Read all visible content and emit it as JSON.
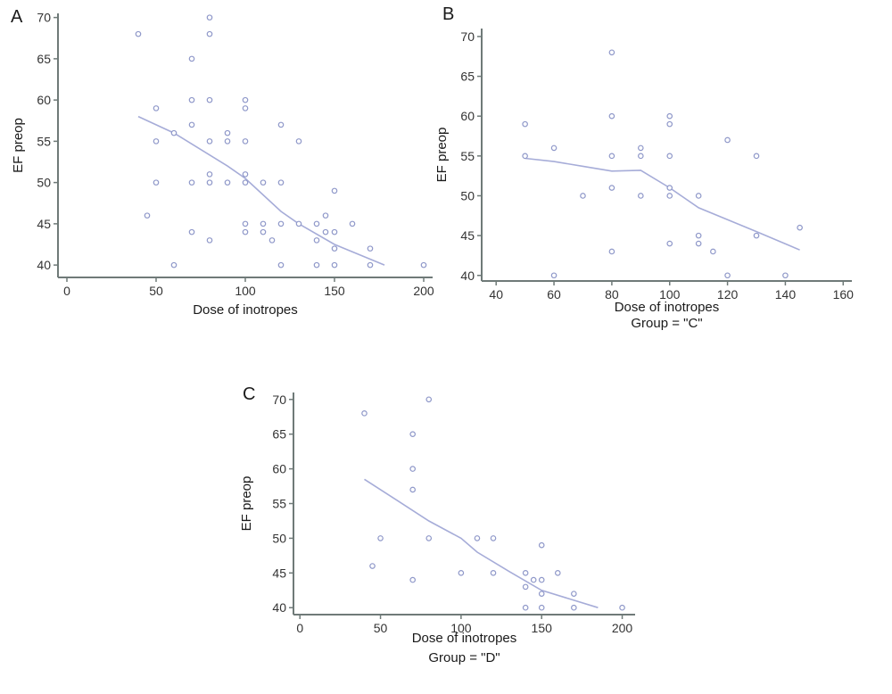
{
  "chart_data": [
    {
      "type": "scatter",
      "panel_label": "A",
      "xlabel": "Dose of inotropes",
      "ylabel": "EF preop",
      "group_label": "",
      "xlim": [
        -5,
        205
      ],
      "ylim": [
        38.5,
        70.5
      ],
      "xticks": [
        0,
        50,
        100,
        150,
        200
      ],
      "yticks": [
        40,
        45,
        50,
        55,
        60,
        65,
        70
      ],
      "colors": {
        "marker": "#8f98c9",
        "line": "#a6acd8",
        "axis": "#6f7a78"
      },
      "points": [
        {
          "x": 40,
          "y": 68
        },
        {
          "x": 80,
          "y": 70
        },
        {
          "x": 80,
          "y": 68
        },
        {
          "x": 70,
          "y": 65
        },
        {
          "x": 50,
          "y": 59
        },
        {
          "x": 70,
          "y": 60
        },
        {
          "x": 80,
          "y": 60
        },
        {
          "x": 100,
          "y": 60
        },
        {
          "x": 100,
          "y": 59
        },
        {
          "x": 70,
          "y": 57
        },
        {
          "x": 60,
          "y": 56
        },
        {
          "x": 90,
          "y": 56
        },
        {
          "x": 50,
          "y": 55
        },
        {
          "x": 80,
          "y": 55
        },
        {
          "x": 90,
          "y": 55
        },
        {
          "x": 100,
          "y": 55
        },
        {
          "x": 120,
          "y": 57
        },
        {
          "x": 130,
          "y": 55
        },
        {
          "x": 80,
          "y": 51
        },
        {
          "x": 100,
          "y": 51
        },
        {
          "x": 50,
          "y": 50
        },
        {
          "x": 70,
          "y": 50
        },
        {
          "x": 80,
          "y": 50
        },
        {
          "x": 90,
          "y": 50
        },
        {
          "x": 100,
          "y": 50
        },
        {
          "x": 110,
          "y": 50
        },
        {
          "x": 120,
          "y": 50
        },
        {
          "x": 150,
          "y": 49
        },
        {
          "x": 45,
          "y": 46
        },
        {
          "x": 145,
          "y": 46
        },
        {
          "x": 100,
          "y": 45
        },
        {
          "x": 110,
          "y": 45
        },
        {
          "x": 120,
          "y": 45
        },
        {
          "x": 130,
          "y": 45
        },
        {
          "x": 140,
          "y": 45
        },
        {
          "x": 160,
          "y": 45
        },
        {
          "x": 70,
          "y": 44
        },
        {
          "x": 100,
          "y": 44
        },
        {
          "x": 110,
          "y": 44
        },
        {
          "x": 145,
          "y": 44
        },
        {
          "x": 150,
          "y": 44
        },
        {
          "x": 80,
          "y": 43
        },
        {
          "x": 115,
          "y": 43
        },
        {
          "x": 140,
          "y": 43
        },
        {
          "x": 150,
          "y": 42
        },
        {
          "x": 170,
          "y": 42
        },
        {
          "x": 60,
          "y": 40
        },
        {
          "x": 120,
          "y": 40
        },
        {
          "x": 140,
          "y": 40
        },
        {
          "x": 150,
          "y": 40
        },
        {
          "x": 170,
          "y": 40
        },
        {
          "x": 200,
          "y": 40
        }
      ],
      "fit_line": [
        {
          "x": 40,
          "y": 58
        },
        {
          "x": 60,
          "y": 56
        },
        {
          "x": 90,
          "y": 52
        },
        {
          "x": 100,
          "y": 50.5
        },
        {
          "x": 120,
          "y": 46.5
        },
        {
          "x": 130,
          "y": 45
        },
        {
          "x": 150,
          "y": 42.5
        },
        {
          "x": 178,
          "y": 40
        }
      ]
    },
    {
      "type": "scatter",
      "panel_label": "B",
      "xlabel": "Dose of inotropes",
      "ylabel": "EF preop",
      "group_label": "Group = \"C\"",
      "xlim": [
        35,
        163
      ],
      "ylim": [
        39.3,
        71
      ],
      "xticks": [
        40,
        60,
        80,
        100,
        120,
        140,
        160
      ],
      "yticks": [
        40,
        45,
        50,
        55,
        60,
        65,
        70
      ],
      "colors": {
        "marker": "#8f98c9",
        "line": "#a6acd8",
        "axis": "#6f7a78"
      },
      "points": [
        {
          "x": 80,
          "y": 68
        },
        {
          "x": 50,
          "y": 59
        },
        {
          "x": 80,
          "y": 60
        },
        {
          "x": 100,
          "y": 60
        },
        {
          "x": 100,
          "y": 59
        },
        {
          "x": 120,
          "y": 57
        },
        {
          "x": 60,
          "y": 56
        },
        {
          "x": 90,
          "y": 56
        },
        {
          "x": 50,
          "y": 55
        },
        {
          "x": 80,
          "y": 55
        },
        {
          "x": 90,
          "y": 55
        },
        {
          "x": 100,
          "y": 55
        },
        {
          "x": 130,
          "y": 55
        },
        {
          "x": 80,
          "y": 51
        },
        {
          "x": 100,
          "y": 51
        },
        {
          "x": 70,
          "y": 50
        },
        {
          "x": 90,
          "y": 50
        },
        {
          "x": 100,
          "y": 50
        },
        {
          "x": 110,
          "y": 50
        },
        {
          "x": 145,
          "y": 46
        },
        {
          "x": 110,
          "y": 45
        },
        {
          "x": 130,
          "y": 45
        },
        {
          "x": 100,
          "y": 44
        },
        {
          "x": 110,
          "y": 44
        },
        {
          "x": 80,
          "y": 43
        },
        {
          "x": 115,
          "y": 43
        },
        {
          "x": 60,
          "y": 40
        },
        {
          "x": 120,
          "y": 40
        },
        {
          "x": 140,
          "y": 40
        }
      ],
      "fit_line": [
        {
          "x": 50,
          "y": 54.7
        },
        {
          "x": 60,
          "y": 54.3
        },
        {
          "x": 70,
          "y": 53.7
        },
        {
          "x": 80,
          "y": 53.1
        },
        {
          "x": 90,
          "y": 53.2
        },
        {
          "x": 100,
          "y": 51
        },
        {
          "x": 110,
          "y": 48.5
        },
        {
          "x": 120,
          "y": 47
        },
        {
          "x": 130,
          "y": 45.5
        },
        {
          "x": 145,
          "y": 43.2
        }
      ]
    },
    {
      "type": "scatter",
      "panel_label": "C",
      "xlabel": "Dose of inotropes",
      "ylabel": "EF preop",
      "group_label": "Group = \"D\"",
      "xlim": [
        -4,
        208
      ],
      "ylim": [
        39,
        71
      ],
      "xticks": [
        0,
        50,
        100,
        150,
        200
      ],
      "yticks": [
        40,
        45,
        50,
        55,
        60,
        65,
        70
      ],
      "colors": {
        "marker": "#8f98c9",
        "line": "#a6acd8",
        "axis": "#6f7a78"
      },
      "points": [
        {
          "x": 80,
          "y": 70
        },
        {
          "x": 40,
          "y": 68
        },
        {
          "x": 70,
          "y": 65
        },
        {
          "x": 70,
          "y": 60
        },
        {
          "x": 70,
          "y": 57
        },
        {
          "x": 50,
          "y": 50
        },
        {
          "x": 80,
          "y": 50
        },
        {
          "x": 110,
          "y": 50
        },
        {
          "x": 120,
          "y": 50
        },
        {
          "x": 150,
          "y": 49
        },
        {
          "x": 45,
          "y": 46
        },
        {
          "x": 100,
          "y": 45
        },
        {
          "x": 120,
          "y": 45
        },
        {
          "x": 140,
          "y": 45
        },
        {
          "x": 160,
          "y": 45
        },
        {
          "x": 70,
          "y": 44
        },
        {
          "x": 145,
          "y": 44
        },
        {
          "x": 150,
          "y": 44
        },
        {
          "x": 140,
          "y": 43
        },
        {
          "x": 150,
          "y": 42
        },
        {
          "x": 170,
          "y": 42
        },
        {
          "x": 140,
          "y": 40
        },
        {
          "x": 150,
          "y": 40
        },
        {
          "x": 170,
          "y": 40
        },
        {
          "x": 200,
          "y": 40
        }
      ],
      "fit_line": [
        {
          "x": 40,
          "y": 58.5
        },
        {
          "x": 60,
          "y": 55.5
        },
        {
          "x": 80,
          "y": 52.5
        },
        {
          "x": 100,
          "y": 50
        },
        {
          "x": 110,
          "y": 48
        },
        {
          "x": 130,
          "y": 45.2
        },
        {
          "x": 150,
          "y": 42.5
        },
        {
          "x": 185,
          "y": 40
        }
      ]
    }
  ]
}
